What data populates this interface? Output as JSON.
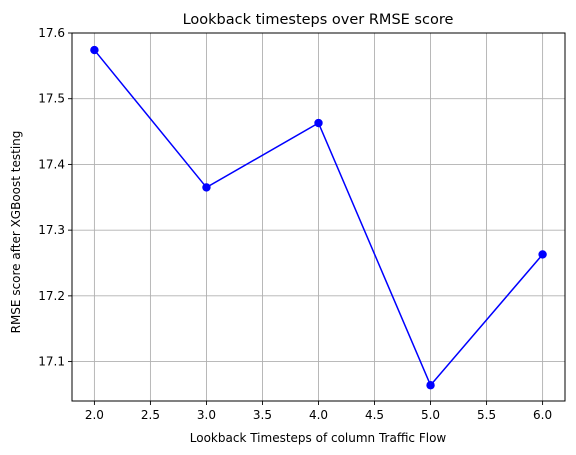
{
  "chart_data": {
    "type": "line",
    "title": "Lookback timesteps over RMSE score",
    "xlabel": "Lookback Timesteps of column Traffic Flow",
    "ylabel": "RMSE score after XGBoost testing",
    "xlim": [
      1.8,
      6.2
    ],
    "ylim": [
      17.04,
      17.6
    ],
    "xticks": [
      2.0,
      2.5,
      3.0,
      3.5,
      4.0,
      4.5,
      5.0,
      5.5,
      6.0
    ],
    "xtick_labels": [
      "2.0",
      "2.5",
      "3.0",
      "3.5",
      "4.0",
      "4.5",
      "5.0",
      "5.5",
      "6.0"
    ],
    "yticks": [
      17.1,
      17.2,
      17.3,
      17.4,
      17.5,
      17.6
    ],
    "ytick_labels": [
      "17.1",
      "17.2",
      "17.3",
      "17.4",
      "17.5",
      "17.6"
    ],
    "grid": true,
    "series": [
      {
        "color": "#0000ff",
        "marker": "circle",
        "x": [
          2,
          3,
          4,
          5,
          6
        ],
        "y": [
          17.574,
          17.365,
          17.463,
          17.064,
          17.263
        ]
      }
    ]
  }
}
